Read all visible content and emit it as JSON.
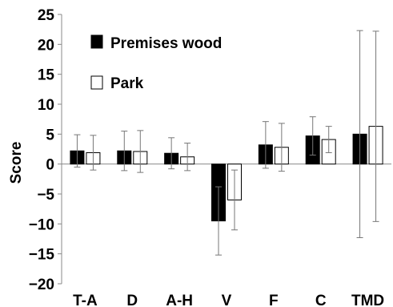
{
  "chart_data": {
    "type": "bar",
    "categories": [
      "T-A",
      "D",
      "A-H",
      "V",
      "F",
      "C",
      "TMD"
    ],
    "series": [
      {
        "name": "Premises wood",
        "color": "#000000",
        "values": [
          2.2,
          2.2,
          1.8,
          -9.5,
          3.2,
          4.7,
          5.0
        ],
        "error": [
          2.7,
          3.3,
          2.6,
          5.7,
          3.9,
          3.2,
          17.3
        ]
      },
      {
        "name": "Park",
        "color": "#ffffff",
        "values": [
          1.9,
          2.1,
          1.2,
          -6.0,
          2.8,
          4.1,
          6.3
        ],
        "error": [
          2.9,
          3.5,
          2.3,
          5.0,
          4.0,
          2.2,
          15.9
        ]
      }
    ],
    "ylabel": "Score",
    "xlabel": "",
    "ylim": [
      -20,
      25
    ],
    "yticks": [
      "25",
      "20",
      "15",
      "10",
      "5",
      "0",
      "−5",
      "−10",
      "−15",
      "−20"
    ],
    "grid": false,
    "legend_position": "top-left"
  }
}
